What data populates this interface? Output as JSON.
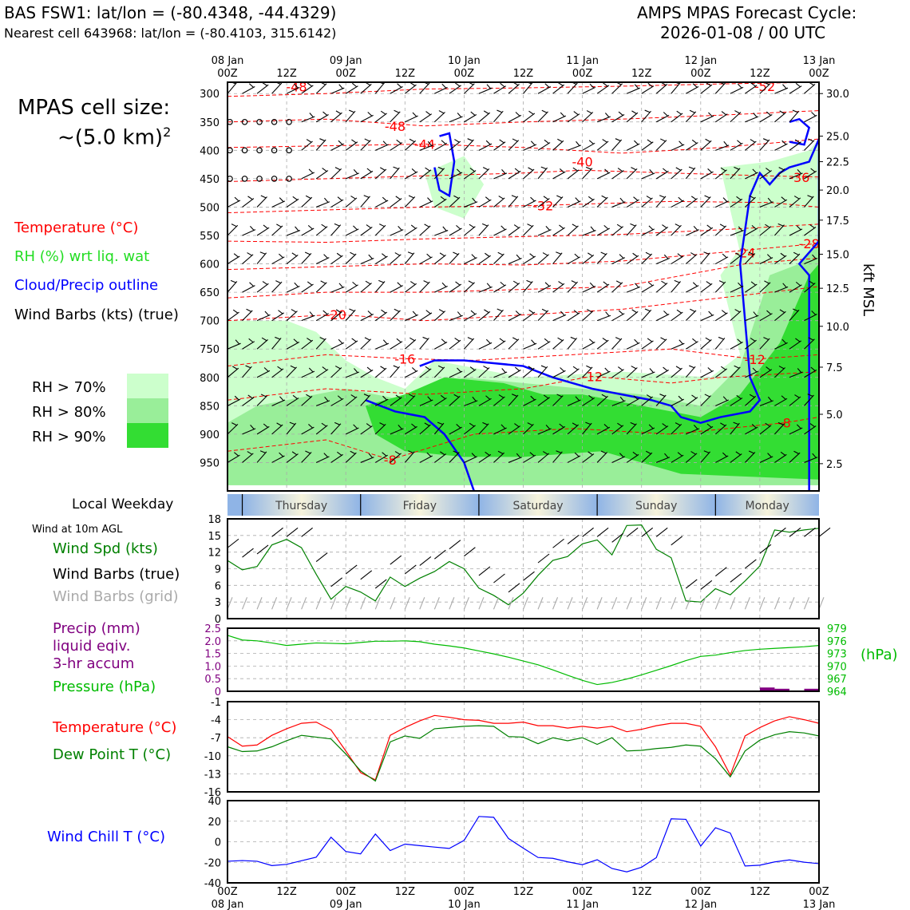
{
  "header": {
    "station_line": "BAS FSW1: lat/lon = (-80.4348, -44.4329)",
    "cell_line": "Nearest cell 643968: lat/lon = (-80.4103, 315.6142)",
    "cycle_line1": "AMPS MPAS Forecast Cycle:",
    "cycle_line2": "2026-01-08 / 00 UTC"
  },
  "left_panel": {
    "cell_size_line1": "MPAS cell size:",
    "cell_size_line2": "~(5.0 km)",
    "cell_size_sup": "2",
    "legend_temp": "Temperature (°C)",
    "legend_rh": "RH (%) wrt liq. wat",
    "legend_cloud": "Cloud/Precip outline",
    "legend_wind": "Wind Barbs (kts) (true)",
    "rh70": "RH > 70%",
    "rh80": "RH > 80%",
    "rh90": "RH > 90%",
    "weekday_label": "Local Weekday",
    "wind10m_label": "Wind at 10m AGL",
    "wind_spd": "Wind Spd (kts)",
    "wind_true": "Wind Barbs (true)",
    "wind_grid": "Wind Barbs (grid)",
    "precip1": "Precip (mm)",
    "precip2": "liquid eqiv.",
    "precip3": "3-hr accum",
    "pressure": "Pressure (hPa)",
    "temp2": "Temperature (°C)",
    "dew": "Dew Point T (°C)",
    "chill": "Wind Chill T (°C)"
  },
  "colors": {
    "temp": "#ff0000",
    "rh": "#22dd22",
    "cloud": "#0000ff",
    "rh70": "#ccffcc",
    "rh80": "#99ee99",
    "rh90": "#33dd33",
    "precip": "#800080",
    "pressure": "#00bb00",
    "dew": "#008000",
    "chill": "#0000ff"
  },
  "time_axis": {
    "tick_hours": [
      0,
      12,
      24,
      36,
      48,
      60,
      72,
      84,
      96,
      108,
      120
    ],
    "top_labels": [
      {
        "h": 0,
        "date": "08 Jan",
        "time": "00Z"
      },
      {
        "h": 12,
        "date": "",
        "time": "12Z"
      },
      {
        "h": 24,
        "date": "09 Jan",
        "time": "00Z"
      },
      {
        "h": 36,
        "date": "",
        "time": "12Z"
      },
      {
        "h": 48,
        "date": "10 Jan",
        "time": "00Z"
      },
      {
        "h": 60,
        "date": "",
        "time": "12Z"
      },
      {
        "h": 72,
        "date": "11 Jan",
        "time": "00Z"
      },
      {
        "h": 84,
        "date": "",
        "time": "12Z"
      },
      {
        "h": 96,
        "date": "12 Jan",
        "time": "00Z"
      },
      {
        "h": 108,
        "date": "",
        "time": "12Z"
      },
      {
        "h": 120,
        "date": "13 Jan",
        "time": "00Z"
      }
    ],
    "weekdays": [
      {
        "name": "Thursday",
        "start": 3,
        "end": 27
      },
      {
        "name": "Friday",
        "start": 27,
        "end": 51
      },
      {
        "name": "Saturday",
        "start": 51,
        "end": 75
      },
      {
        "name": "Sunday",
        "start": 75,
        "end": 99
      },
      {
        "name": "Monday",
        "start": 99,
        "end": 120
      }
    ]
  },
  "chart_data": [
    {
      "type": "heatmap",
      "title": "",
      "yaxis_left": {
        "label": "",
        "ticks": [
          300,
          350,
          400,
          450,
          500,
          550,
          600,
          650,
          700,
          750,
          800,
          850,
          900,
          950
        ],
        "range": [
          1000,
          280
        ],
        "unit": "hPa"
      },
      "yaxis_right": {
        "label": "kft MSL",
        "ticks": [
          "30.0",
          "25.0",
          "22.5",
          "20.0",
          "17.5",
          "15.0",
          "12.5",
          "10.0",
          "7.5",
          "5.0",
          "2.5"
        ],
        "pressures": [
          300,
          375,
          420,
          470,
          523,
          583,
          643,
          710,
          782,
          865,
          952
        ]
      },
      "xrange_hours": [
        0,
        120
      ],
      "temperature_contour_labels": [
        {
          "h": 14,
          "p": 288,
          "v": "-48"
        },
        {
          "h": 34,
          "p": 357,
          "v": "-48"
        },
        {
          "h": 40,
          "p": 389,
          "v": "-44"
        },
        {
          "h": 72,
          "p": 420,
          "v": "-40"
        },
        {
          "h": 116,
          "p": 447,
          "v": "-36"
        },
        {
          "h": 64,
          "p": 497,
          "v": "-32"
        },
        {
          "h": 109,
          "p": 287,
          "v": "-52"
        },
        {
          "h": 118,
          "p": 564,
          "v": "-28"
        },
        {
          "h": 105,
          "p": 580,
          "v": "-24"
        },
        {
          "h": 22,
          "p": 689,
          "v": "-20"
        },
        {
          "h": 36,
          "p": 767,
          "v": "-16"
        },
        {
          "h": 74,
          "p": 798,
          "v": "-12"
        },
        {
          "h": 107,
          "p": 768,
          "v": "-12"
        },
        {
          "h": 113,
          "p": 880,
          "v": "-8"
        },
        {
          "h": 33,
          "p": 945,
          "v": "-8"
        }
      ]
    },
    {
      "type": "line",
      "title": "Wind at 10m AGL",
      "ylim": [
        0,
        18
      ],
      "yticks": [
        0,
        3,
        6,
        9,
        12,
        15,
        18
      ],
      "x": [
        0,
        3,
        6,
        9,
        12,
        15,
        18,
        21,
        24,
        27,
        30,
        33,
        36,
        39,
        42,
        45,
        48,
        51,
        54,
        57,
        60,
        63,
        66,
        69,
        72,
        75,
        78,
        81,
        84,
        87,
        90,
        93,
        96,
        99,
        102,
        105,
        108,
        111,
        114,
        117,
        120
      ],
      "series": [
        {
          "name": "Wind Spd (kts)",
          "values": [
            10.5,
            8.8,
            9.4,
            13.3,
            14.3,
            12.8,
            8.0,
            3.5,
            5.8,
            4.8,
            3.2,
            7.5,
            5.8,
            7.3,
            8.5,
            10.3,
            9.0,
            5.5,
            4.2,
            2.5,
            4.6,
            7.8,
            10.5,
            11.2,
            13.5,
            14.2,
            11.5,
            16.8,
            16.9,
            12.5,
            11.0,
            3.2,
            3.0,
            5.4,
            4.3,
            6.8,
            9.5,
            16.0,
            15.6,
            16.0,
            16.3
          ]
        }
      ]
    },
    {
      "type": "line",
      "title": "",
      "y_left": {
        "ticks": [
          "0",
          "0.5",
          "1.0",
          "1.5",
          "2.0",
          "2.5"
        ],
        "range": [
          0,
          2.5
        ],
        "label": "Precip (mm)"
      },
      "y_right": {
        "ticks": [
          "964",
          "967",
          "970",
          "973",
          "976",
          "979"
        ],
        "range": [
          964,
          979
        ],
        "label": "(hPa)"
      },
      "x": [
        0,
        3,
        6,
        9,
        12,
        15,
        18,
        21,
        24,
        27,
        30,
        33,
        36,
        39,
        42,
        45,
        48,
        51,
        54,
        57,
        60,
        63,
        66,
        69,
        72,
        75,
        78,
        81,
        84,
        87,
        90,
        93,
        96,
        99,
        102,
        105,
        108,
        111,
        114,
        117,
        120
      ],
      "series": [
        {
          "name": "Pressure (hPa)",
          "values": [
            977.3,
            976.2,
            976.0,
            975.5,
            974.9,
            975.2,
            975.5,
            975.4,
            975.3,
            975.6,
            975.9,
            975.9,
            976.0,
            975.8,
            975.2,
            974.8,
            974.3,
            973.6,
            972.9,
            972.1,
            971.2,
            970.3,
            969.1,
            967.8,
            966.6,
            965.6,
            966.1,
            966.9,
            967.9,
            969.0,
            970.1,
            971.3,
            972.3,
            972.6,
            973.2,
            973.7,
            974.0,
            974.2,
            974.4,
            974.6,
            974.9
          ]
        }
      ],
      "precip_bars": [
        {
          "h": 109.5,
          "v": 0.15
        },
        {
          "h": 112.5,
          "v": 0.1
        },
        {
          "h": 118.5,
          "v": 0.1
        }
      ]
    },
    {
      "type": "line",
      "title": "",
      "ylim": [
        -16,
        -1
      ],
      "yticks": [
        -16,
        -13,
        -10,
        -7,
        -4,
        -1
      ],
      "x": [
        0,
        3,
        6,
        9,
        12,
        15,
        18,
        21,
        24,
        27,
        30,
        33,
        36,
        39,
        42,
        45,
        48,
        51,
        54,
        57,
        60,
        63,
        66,
        69,
        72,
        75,
        78,
        81,
        84,
        87,
        90,
        93,
        96,
        99,
        102,
        105,
        108,
        111,
        114,
        117,
        120
      ],
      "series": [
        {
          "name": "Temperature (°C)",
          "values": [
            -6.8,
            -8.4,
            -8.2,
            -6.6,
            -5.5,
            -4.6,
            -4.4,
            -5.7,
            -9.2,
            -12.8,
            -14.0,
            -6.6,
            -5.3,
            -4.2,
            -3.3,
            -3.6,
            -4.0,
            -4.1,
            -4.6,
            -4.6,
            -4.4,
            -5.0,
            -5.0,
            -5.4,
            -5.1,
            -5.4,
            -5.1,
            -6.0,
            -5.6,
            -5.0,
            -4.6,
            -4.6,
            -5.1,
            -8.5,
            -13.2,
            -6.7,
            -5.3,
            -4.2,
            -3.5,
            -4.0,
            -4.6
          ]
        },
        {
          "name": "Dew Point T (°C)",
          "values": [
            -8.5,
            -9.3,
            -9.2,
            -8.5,
            -7.5,
            -6.6,
            -6.9,
            -7.2,
            -9.7,
            -12.5,
            -14.2,
            -7.7,
            -6.7,
            -7.1,
            -5.5,
            -5.3,
            -5.1,
            -5.0,
            -5.1,
            -6.8,
            -6.9,
            -8.0,
            -7.0,
            -7.5,
            -7.0,
            -8.1,
            -7.0,
            -9.2,
            -9.1,
            -8.8,
            -8.6,
            -8.2,
            -8.4,
            -10.5,
            -13.5,
            -9.2,
            -7.4,
            -6.5,
            -6.0,
            -6.2,
            -6.7
          ]
        }
      ]
    },
    {
      "type": "line",
      "title": "",
      "ylim": [
        -40,
        40
      ],
      "yticks": [
        -40,
        -20,
        0,
        20,
        40
      ],
      "x": [
        0,
        3,
        6,
        9,
        12,
        15,
        18,
        21,
        24,
        27,
        30,
        33,
        36,
        39,
        42,
        45,
        48,
        51,
        54,
        57,
        60,
        63,
        66,
        69,
        72,
        75,
        78,
        81,
        84,
        87,
        90,
        93,
        96,
        99,
        102,
        105,
        108,
        111,
        114,
        117,
        120
      ],
      "series": [
        {
          "name": "Wind Chill T (°C)",
          "values": [
            -19,
            -18.3,
            -19,
            -23.2,
            -22,
            -18.5,
            -15,
            4.4,
            -9.5,
            -11.8,
            7.5,
            -8.6,
            -2.3,
            -3.8,
            -5.2,
            -6.5,
            1.3,
            24.6,
            23.8,
            3.2,
            -6.2,
            -15.3,
            -16.1,
            -19.5,
            -22.3,
            -17.5,
            -26,
            -29.3,
            -24.8,
            -15.4,
            22.3,
            21.8,
            -4.2,
            13.6,
            8.5,
            -23.6,
            -22.8,
            -19.6,
            -17.7,
            -19.9,
            -21.3
          ]
        }
      ]
    }
  ],
  "strip_labels": {
    "wind_ticks": [
      "0",
      "3",
      "6",
      "9",
      "12",
      "15",
      "18"
    ],
    "precip_ticks": [
      "0",
      "0.5",
      "1.0",
      "1.5",
      "2.0",
      "2.5"
    ],
    "pressure_ticks": [
      "964",
      "967",
      "970",
      "973",
      "976",
      "979"
    ],
    "temp_ticks": [
      "-16",
      "-13",
      "-10",
      "-7",
      "-4",
      "-1"
    ],
    "chill_ticks": [
      "-40",
      "-20",
      "0",
      "20",
      "40"
    ],
    "hpa_label": "(hPa)"
  }
}
